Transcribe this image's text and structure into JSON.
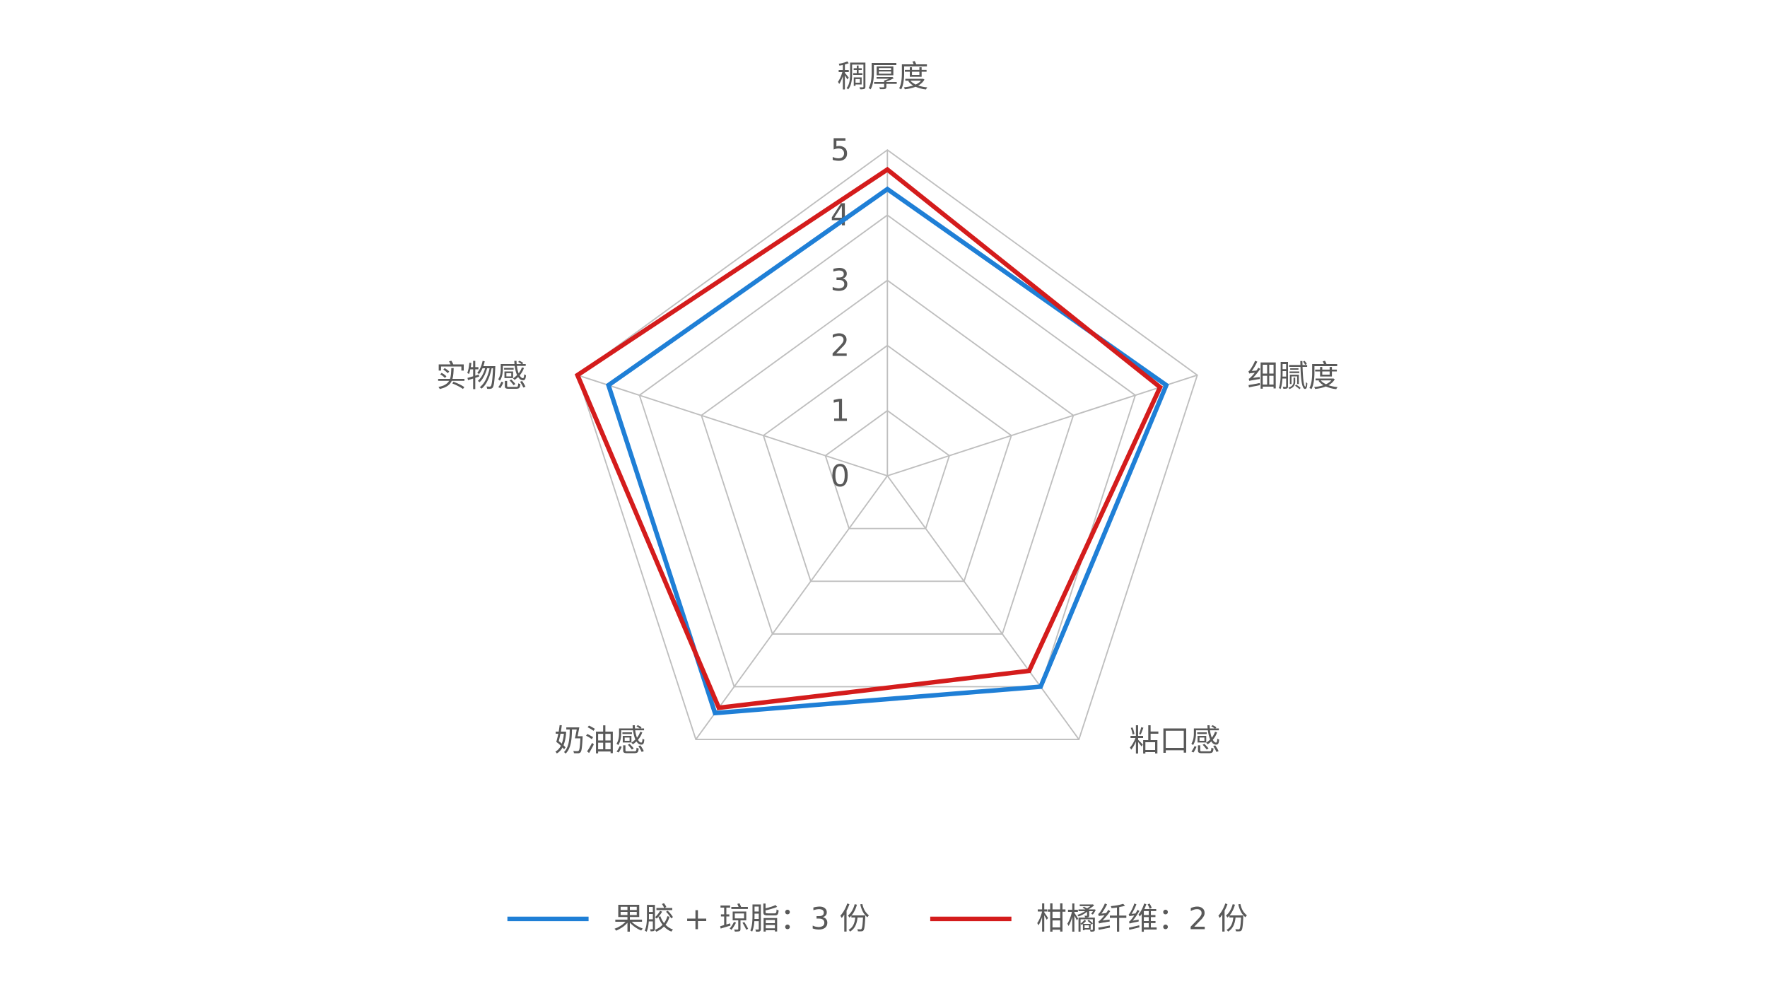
{
  "chart_data": {
    "type": "radar",
    "categories": [
      "稠厚度",
      "细腻度",
      "粘口感",
      "奶油感",
      "实物感"
    ],
    "series": [
      {
        "name": "果胶 + 琼脂：3 份",
        "color": "#1f7fd6",
        "values": [
          4.4,
          4.5,
          4.0,
          4.5,
          4.5
        ]
      },
      {
        "name": "柑橘纤维：2 份",
        "color": "#d41c1c",
        "values": [
          4.7,
          4.4,
          3.7,
          4.4,
          5.0
        ]
      }
    ],
    "rlim": [
      0,
      5
    ],
    "rticks": [
      0,
      1,
      2,
      3,
      4,
      5
    ],
    "grid": true,
    "legend": "bottom"
  }
}
